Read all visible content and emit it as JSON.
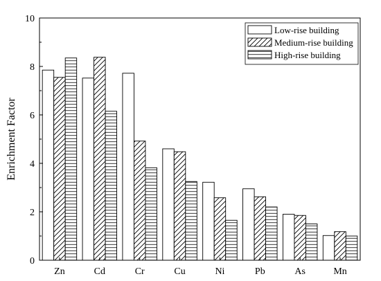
{
  "chart_data": {
    "type": "bar",
    "title": "",
    "xlabel": "",
    "ylabel": "Enrichment Factor",
    "ylim": [
      0,
      10
    ],
    "yticks": [
      0,
      2,
      4,
      6,
      8,
      10
    ],
    "grid": false,
    "legend_position": "top-right",
    "categories": [
      "Zn",
      "Cd",
      "Cr",
      "Cu",
      "Ni",
      "Pb",
      "As",
      "Mn"
    ],
    "series": [
      {
        "name": "Low-rise building",
        "pattern": "solid-white",
        "values": [
          7.85,
          7.52,
          7.72,
          4.6,
          3.22,
          2.95,
          1.9,
          1.02
        ]
      },
      {
        "name": "Medium-rise building",
        "pattern": "diagonal-hatch",
        "values": [
          7.55,
          8.38,
          4.92,
          4.48,
          2.58,
          2.62,
          1.85,
          1.18
        ]
      },
      {
        "name": "High-rise building",
        "pattern": "horizontal-hatch",
        "values": [
          8.35,
          6.15,
          3.82,
          3.25,
          1.65,
          2.2,
          1.5,
          1.0
        ]
      }
    ]
  }
}
